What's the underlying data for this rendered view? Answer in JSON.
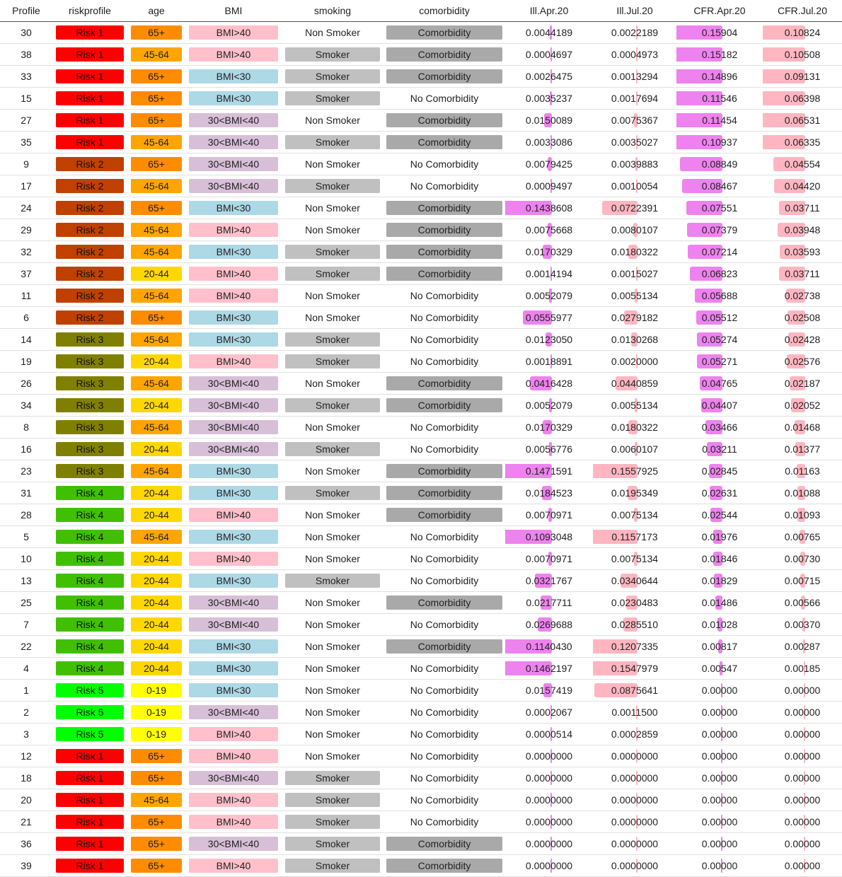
{
  "colors": {
    "risk": {
      "Risk 1": "#ff0000",
      "Risk 2": "#c04000",
      "Risk 3": "#808000",
      "Risk 4": "#40c000",
      "Risk 5": "#00ff00"
    },
    "age": {
      "65+": "#ff8c00",
      "45-64": "#ffa500",
      "20-44": "#ffd700",
      "0-19": "#ffff00"
    },
    "bmi": {
      "BMI>40": "#ffc0cb",
      "BMI<30": "#add8e6",
      "30<BMI<40": "#d8bfd8"
    },
    "smoking": {
      "Smoker": "#c0c0c0",
      "Non Smoker": "transparent"
    },
    "comorbidity": {
      "Comorbidity": "#a9a9a9",
      "No Comorbidity": "transparent"
    },
    "bar_apr": "#ee82ee",
    "bar_jul": "#ffb6c1"
  },
  "columns": [
    "Profile",
    "riskprofile",
    "age",
    "BMI",
    "smoking",
    "comorbidity",
    "Ill.Apr.20",
    "Ill.Jul.20",
    "CFR.Apr.20",
    "CFR.Jul.20"
  ],
  "bar_max": {
    "ill_apr": 0.1471591,
    "ill_jul": 0.1557925,
    "cfr_apr": 0.15904,
    "cfr_jul": 0.10824
  },
  "rows": [
    [
      "30",
      "Risk 1",
      "65+",
      "BMI>40",
      "Non Smoker",
      "Comorbidity",
      "0.0044189",
      "0.0022189",
      "0.15904",
      "0.10824"
    ],
    [
      "38",
      "Risk 1",
      "45-64",
      "BMI>40",
      "Smoker",
      "Comorbidity",
      "0.0004697",
      "0.0004973",
      "0.15182",
      "0.10508"
    ],
    [
      "33",
      "Risk 1",
      "65+",
      "BMI<30",
      "Smoker",
      "Comorbidity",
      "0.0026475",
      "0.0013294",
      "0.14896",
      "0.09131"
    ],
    [
      "15",
      "Risk 1",
      "65+",
      "BMI<30",
      "Smoker",
      "No Comorbidity",
      "0.0035237",
      "0.0017694",
      "0.11546",
      "0.06398"
    ],
    [
      "27",
      "Risk 1",
      "65+",
      "30<BMI<40",
      "Non Smoker",
      "Comorbidity",
      "0.0150089",
      "0.0075367",
      "0.11454",
      "0.06531"
    ],
    [
      "35",
      "Risk 1",
      "45-64",
      "30<BMI<40",
      "Smoker",
      "Comorbidity",
      "0.0033086",
      "0.0035027",
      "0.10937",
      "0.06335"
    ],
    [
      "9",
      "Risk 2",
      "65+",
      "30<BMI<40",
      "Non Smoker",
      "No Comorbidity",
      "0.0079425",
      "0.0039883",
      "0.08849",
      "0.04554"
    ],
    [
      "17",
      "Risk 2",
      "45-64",
      "30<BMI<40",
      "Smoker",
      "No Comorbidity",
      "0.0009497",
      "0.0010054",
      "0.08467",
      "0.04420"
    ],
    [
      "24",
      "Risk 2",
      "65+",
      "BMI<30",
      "Non Smoker",
      "Comorbidity",
      "0.1438608",
      "0.0722391",
      "0.07551",
      "0.03711"
    ],
    [
      "29",
      "Risk 2",
      "45-64",
      "BMI>40",
      "Non Smoker",
      "Comorbidity",
      "0.0075668",
      "0.0080107",
      "0.07379",
      "0.03948"
    ],
    [
      "32",
      "Risk 2",
      "45-64",
      "BMI<30",
      "Smoker",
      "Comorbidity",
      "0.0170329",
      "0.0180322",
      "0.07214",
      "0.03593"
    ],
    [
      "37",
      "Risk 2",
      "20-44",
      "BMI>40",
      "Smoker",
      "Comorbidity",
      "0.0014194",
      "0.0015027",
      "0.06823",
      "0.03711"
    ],
    [
      "11",
      "Risk 2",
      "45-64",
      "BMI>40",
      "Non Smoker",
      "No Comorbidity",
      "0.0052079",
      "0.0055134",
      "0.05688",
      "0.02738"
    ],
    [
      "6",
      "Risk 2",
      "65+",
      "BMI<30",
      "Non Smoker",
      "No Comorbidity",
      "0.0555977",
      "0.0279182",
      "0.05512",
      "0.02508"
    ],
    [
      "14",
      "Risk 3",
      "45-64",
      "BMI<30",
      "Smoker",
      "No Comorbidity",
      "0.0123050",
      "0.0130268",
      "0.05274",
      "0.02428"
    ],
    [
      "19",
      "Risk 3",
      "20-44",
      "BMI>40",
      "Smoker",
      "No Comorbidity",
      "0.0018891",
      "0.0020000",
      "0.05271",
      "0.02576"
    ],
    [
      "26",
      "Risk 3",
      "45-64",
      "30<BMI<40",
      "Non Smoker",
      "Comorbidity",
      "0.0416428",
      "0.0440859",
      "0.04765",
      "0.02187"
    ],
    [
      "34",
      "Risk 3",
      "20-44",
      "30<BMI<40",
      "Smoker",
      "Comorbidity",
      "0.0052079",
      "0.0055134",
      "0.04407",
      "0.02052"
    ],
    [
      "8",
      "Risk 3",
      "45-64",
      "30<BMI<40",
      "Non Smoker",
      "No Comorbidity",
      "0.0170329",
      "0.0180322",
      "0.03466",
      "0.01468"
    ],
    [
      "16",
      "Risk 3",
      "20-44",
      "30<BMI<40",
      "Smoker",
      "No Comorbidity",
      "0.0056776",
      "0.0060107",
      "0.03211",
      "0.01377"
    ],
    [
      "23",
      "Risk 3",
      "45-64",
      "BMI<30",
      "Non Smoker",
      "Comorbidity",
      "0.1471591",
      "0.1557925",
      "0.02845",
      "0.01163"
    ],
    [
      "31",
      "Risk 4",
      "20-44",
      "BMI<30",
      "Smoker",
      "Comorbidity",
      "0.0184523",
      "0.0195349",
      "0.02631",
      "0.01088"
    ],
    [
      "28",
      "Risk 4",
      "20-44",
      "BMI>40",
      "Non Smoker",
      "Comorbidity",
      "0.0070971",
      "0.0075134",
      "0.02544",
      "0.01093"
    ],
    [
      "5",
      "Risk 4",
      "45-64",
      "BMI<30",
      "Non Smoker",
      "No Comorbidity",
      "0.1093048",
      "0.1157173",
      "0.01976",
      "0.00765"
    ],
    [
      "10",
      "Risk 4",
      "20-44",
      "BMI>40",
      "Non Smoker",
      "No Comorbidity",
      "0.0070971",
      "0.0075134",
      "0.01846",
      "0.00730"
    ],
    [
      "13",
      "Risk 4",
      "20-44",
      "BMI<30",
      "Smoker",
      "No Comorbidity",
      "0.0321767",
      "0.0340644",
      "0.01829",
      "0.00715"
    ],
    [
      "25",
      "Risk 4",
      "20-44",
      "30<BMI<40",
      "Non Smoker",
      "Comorbidity",
      "0.0217711",
      "0.0230483",
      "0.01486",
      "0.00566"
    ],
    [
      "7",
      "Risk 4",
      "20-44",
      "30<BMI<40",
      "Non Smoker",
      "No Comorbidity",
      "0.0269688",
      "0.0285510",
      "0.01028",
      "0.00370"
    ],
    [
      "22",
      "Risk 4",
      "20-44",
      "BMI<30",
      "Non Smoker",
      "Comorbidity",
      "0.1140430",
      "0.1207335",
      "0.00817",
      "0.00287"
    ],
    [
      "4",
      "Risk 4",
      "20-44",
      "BMI<30",
      "Non Smoker",
      "No Comorbidity",
      "0.1462197",
      "0.1547979",
      "0.00547",
      "0.00185"
    ],
    [
      "1",
      "Risk 5",
      "0-19",
      "BMI<30",
      "Non Smoker",
      "No Comorbidity",
      "0.0157419",
      "0.0875641",
      "0.00000",
      "0.00000"
    ],
    [
      "2",
      "Risk 5",
      "0-19",
      "30<BMI<40",
      "Non Smoker",
      "No Comorbidity",
      "0.0002067",
      "0.0011500",
      "0.00000",
      "0.00000"
    ],
    [
      "3",
      "Risk 5",
      "0-19",
      "BMI>40",
      "Non Smoker",
      "No Comorbidity",
      "0.0000514",
      "0.0002859",
      "0.00000",
      "0.00000"
    ],
    [
      "12",
      "Risk 1",
      "65+",
      "BMI>40",
      "Non Smoker",
      "No Comorbidity",
      "0.0000000",
      "0.0000000",
      "0.00000",
      "0.00000"
    ],
    [
      "18",
      "Risk 1",
      "65+",
      "30<BMI<40",
      "Smoker",
      "No Comorbidity",
      "0.0000000",
      "0.0000000",
      "0.00000",
      "0.00000"
    ],
    [
      "20",
      "Risk 1",
      "45-64",
      "BMI>40",
      "Smoker",
      "No Comorbidity",
      "0.0000000",
      "0.0000000",
      "0.00000",
      "0.00000"
    ],
    [
      "21",
      "Risk 1",
      "65+",
      "BMI>40",
      "Smoker",
      "No Comorbidity",
      "0.0000000",
      "0.0000000",
      "0.00000",
      "0.00000"
    ],
    [
      "36",
      "Risk 1",
      "65+",
      "30<BMI<40",
      "Smoker",
      "Comorbidity",
      "0.0000000",
      "0.0000000",
      "0.00000",
      "0.00000"
    ],
    [
      "39",
      "Risk 1",
      "65+",
      "BMI>40",
      "Smoker",
      "Comorbidity",
      "0.0000000",
      "0.0000000",
      "0.00000",
      "0.00000"
    ]
  ]
}
